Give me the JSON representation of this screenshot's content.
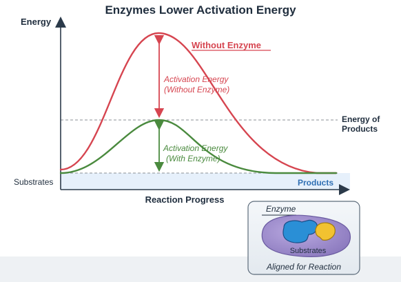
{
  "title": "Enzymes Lower Activation Energy",
  "axes": {
    "y_label": "Energy",
    "x_label": "Reaction Progress"
  },
  "curves": {
    "without_enzyme": {
      "label": "Without Enzyme",
      "color": "#d64550",
      "annotation_line1": "Activation Energy",
      "annotation_line2": "(Without Enzyme)"
    },
    "with_enzyme": {
      "color": "#4a8a3e",
      "annotation_line1": "Activation Energy",
      "annotation_line2": "(With Enzyme)"
    }
  },
  "levels": {
    "products_energy_line1": "Energy of",
    "products_energy_line2": "Products",
    "substrates": "Substrates",
    "products": "Products"
  },
  "inset": {
    "enzyme_label": "Enzyme",
    "substrates_label": "Substrates",
    "caption": "Aligned for Reaction"
  },
  "colors": {
    "axis": "#2b3a4a",
    "dashed": "#8a8f96",
    "band": "#e6f0fb",
    "enzyme_body": "#9a8ac6",
    "substrate_blue": "#2a8fd6",
    "substrate_yellow": "#f2c230"
  }
}
